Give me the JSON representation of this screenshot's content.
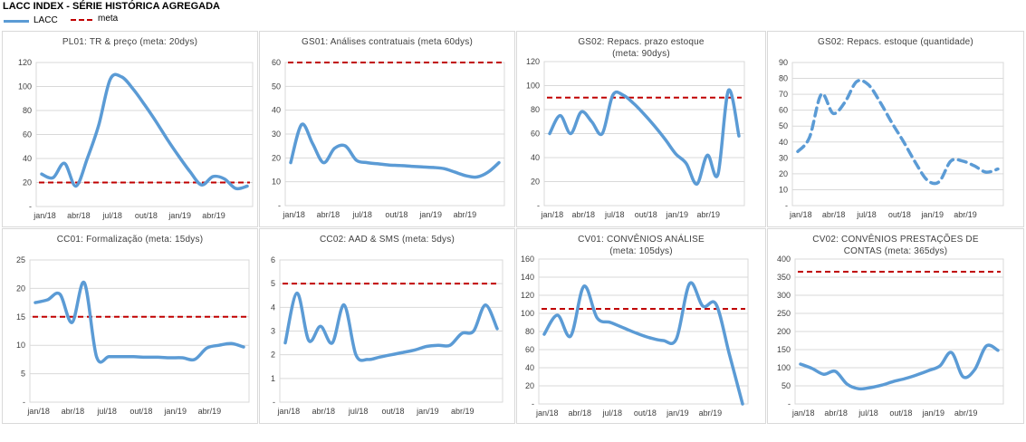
{
  "title": "LACC INDEX - SÉRIE HISTÓRICA AGREGADA",
  "legend": {
    "lacc": "LACC",
    "meta": "meta"
  },
  "colors": {
    "lacc": "#5b9bd5",
    "meta": "#c00000",
    "grid": "#d9d9d9"
  },
  "chart_data": [
    {
      "type": "line",
      "title_lines": [
        "PL01: TR & preço (meta: 20dys)"
      ],
      "y_ticks": [
        "-",
        "20",
        "40",
        "60",
        "80",
        "100",
        "120"
      ],
      "ylim": [
        0,
        120
      ],
      "x_labels": [
        "jan/18",
        "abr/18",
        "jul/18",
        "out/18",
        "jan/19",
        "abr/19"
      ],
      "meta": 20,
      "series": [
        {
          "dashed": false,
          "values": [
            27,
            24,
            36,
            17,
            40,
            68,
            106,
            108,
            98,
            85,
            71,
            56,
            42,
            29,
            18,
            25,
            23,
            15,
            17
          ]
        }
      ]
    },
    {
      "type": "line",
      "title_lines": [
        "GS01: Análises contratuais (meta 60dys)"
      ],
      "y_ticks": [
        "-",
        "10",
        "20",
        "30",
        "40",
        "50",
        "60"
      ],
      "ylim": [
        0,
        60
      ],
      "x_labels": [
        "jan/18",
        "abr/18",
        "jul/18",
        "out/18",
        "jan/19",
        "abr/19"
      ],
      "meta": 60,
      "series": [
        {
          "dashed": false,
          "values": [
            18,
            34,
            26,
            18,
            24,
            25,
            19,
            18,
            17.5,
            17,
            16.8,
            16.5,
            16.2,
            16,
            15.5,
            14,
            12.5,
            12,
            14,
            18
          ]
        }
      ]
    },
    {
      "type": "line",
      "title_lines": [
        "GS02: Repacs. prazo estoque",
        "(meta: 90dys)"
      ],
      "y_ticks": [
        "-",
        "20",
        "40",
        "60",
        "80",
        "100",
        "120"
      ],
      "ylim": [
        0,
        120
      ],
      "x_labels": [
        "jan/18",
        "abr/18",
        "jul/18",
        "out/18",
        "jan/19",
        "abr/19"
      ],
      "meta": 90,
      "series": [
        {
          "dashed": false,
          "values": [
            60,
            75,
            60,
            78,
            70,
            60,
            92,
            92,
            85,
            76,
            66,
            55,
            43,
            35,
            18,
            42,
            26,
            96,
            58
          ]
        }
      ]
    },
    {
      "type": "line",
      "title_lines": [
        "GS02: Repacs. estoque (quantidade)"
      ],
      "y_ticks": [
        "-",
        "10",
        "20",
        "30",
        "40",
        "50",
        "60",
        "70",
        "80",
        "90"
      ],
      "ylim": [
        0,
        90
      ],
      "x_labels": [
        "jan/18",
        "abr/18",
        "jul/18",
        "out/18",
        "jan/19",
        "abr/19"
      ],
      "meta": null,
      "series": [
        {
          "dashed": true,
          "values": [
            34,
            43,
            70,
            58,
            65,
            78,
            76,
            65,
            52,
            40,
            27,
            16,
            15,
            28,
            28,
            25,
            21,
            23
          ]
        }
      ]
    },
    {
      "type": "line",
      "title_lines": [
        "CC01: Formalização (meta: 15dys)"
      ],
      "y_ticks": [
        "-",
        "5",
        "10",
        "15",
        "20",
        "25"
      ],
      "ylim": [
        0,
        25
      ],
      "x_labels": [
        "jan/18",
        "abr/18",
        "jul/18",
        "out/18",
        "jan/19",
        "abr/19"
      ],
      "meta": 15,
      "series": [
        {
          "dashed": false,
          "values": [
            17.5,
            18,
            19,
            14,
            21,
            8,
            8,
            8,
            8,
            7.9,
            7.9,
            7.8,
            7.8,
            7.5,
            9.5,
            10,
            10.3,
            9.7
          ]
        }
      ]
    },
    {
      "type": "line",
      "title_lines": [
        "CC02: AAD & SMS (meta: 5dys)"
      ],
      "y_ticks": [
        "-",
        "1",
        "2",
        "3",
        "4",
        "5",
        "6"
      ],
      "ylim": [
        0,
        6
      ],
      "x_labels": [
        "jan/18",
        "abr/18",
        "jul/18",
        "out/18",
        "jan/19",
        "abr/19"
      ],
      "meta": 5,
      "series": [
        {
          "dashed": false,
          "values": [
            2.5,
            4.6,
            2.6,
            3.2,
            2.5,
            4.1,
            2,
            1.8,
            1.9,
            2,
            2.1,
            2.2,
            2.35,
            2.4,
            2.4,
            2.9,
            3,
            4.1,
            3.1
          ]
        }
      ]
    },
    {
      "type": "line",
      "title_lines": [
        "CV01: CONVÊNIOS ANÁLISE",
        "(meta: 105dys)"
      ],
      "y_ticks": [
        "-",
        "20",
        "40",
        "60",
        "80",
        "100",
        "120",
        "140",
        "160"
      ],
      "ylim": [
        0,
        160
      ],
      "x_labels": [
        "jan/18",
        "abr/18",
        "jul/18",
        "out/18",
        "jan/19",
        "abr/19"
      ],
      "meta": 105,
      "series": [
        {
          "dashed": false,
          "values": [
            77,
            98,
            75,
            130,
            95,
            90,
            84,
            78,
            73,
            70,
            72,
            133,
            108,
            110,
            55,
            0
          ]
        }
      ]
    },
    {
      "type": "line",
      "title_lines": [
        "CV02: CONVÊNIOS PRESTAÇÕES DE",
        "CONTAS (meta: 365dys)"
      ],
      "y_ticks": [
        "-",
        "50",
        "100",
        "150",
        "200",
        "250",
        "300",
        "350",
        "400"
      ],
      "ylim": [
        0,
        400
      ],
      "x_labels": [
        "jan/18",
        "abr/18",
        "jul/18",
        "out/18",
        "jan/19",
        "abr/19"
      ],
      "meta": 365,
      "series": [
        {
          "dashed": false,
          "values": [
            110,
            98,
            82,
            90,
            55,
            42,
            45,
            52,
            62,
            70,
            80,
            92,
            105,
            142,
            75,
            95,
            160,
            148
          ]
        }
      ]
    }
  ]
}
